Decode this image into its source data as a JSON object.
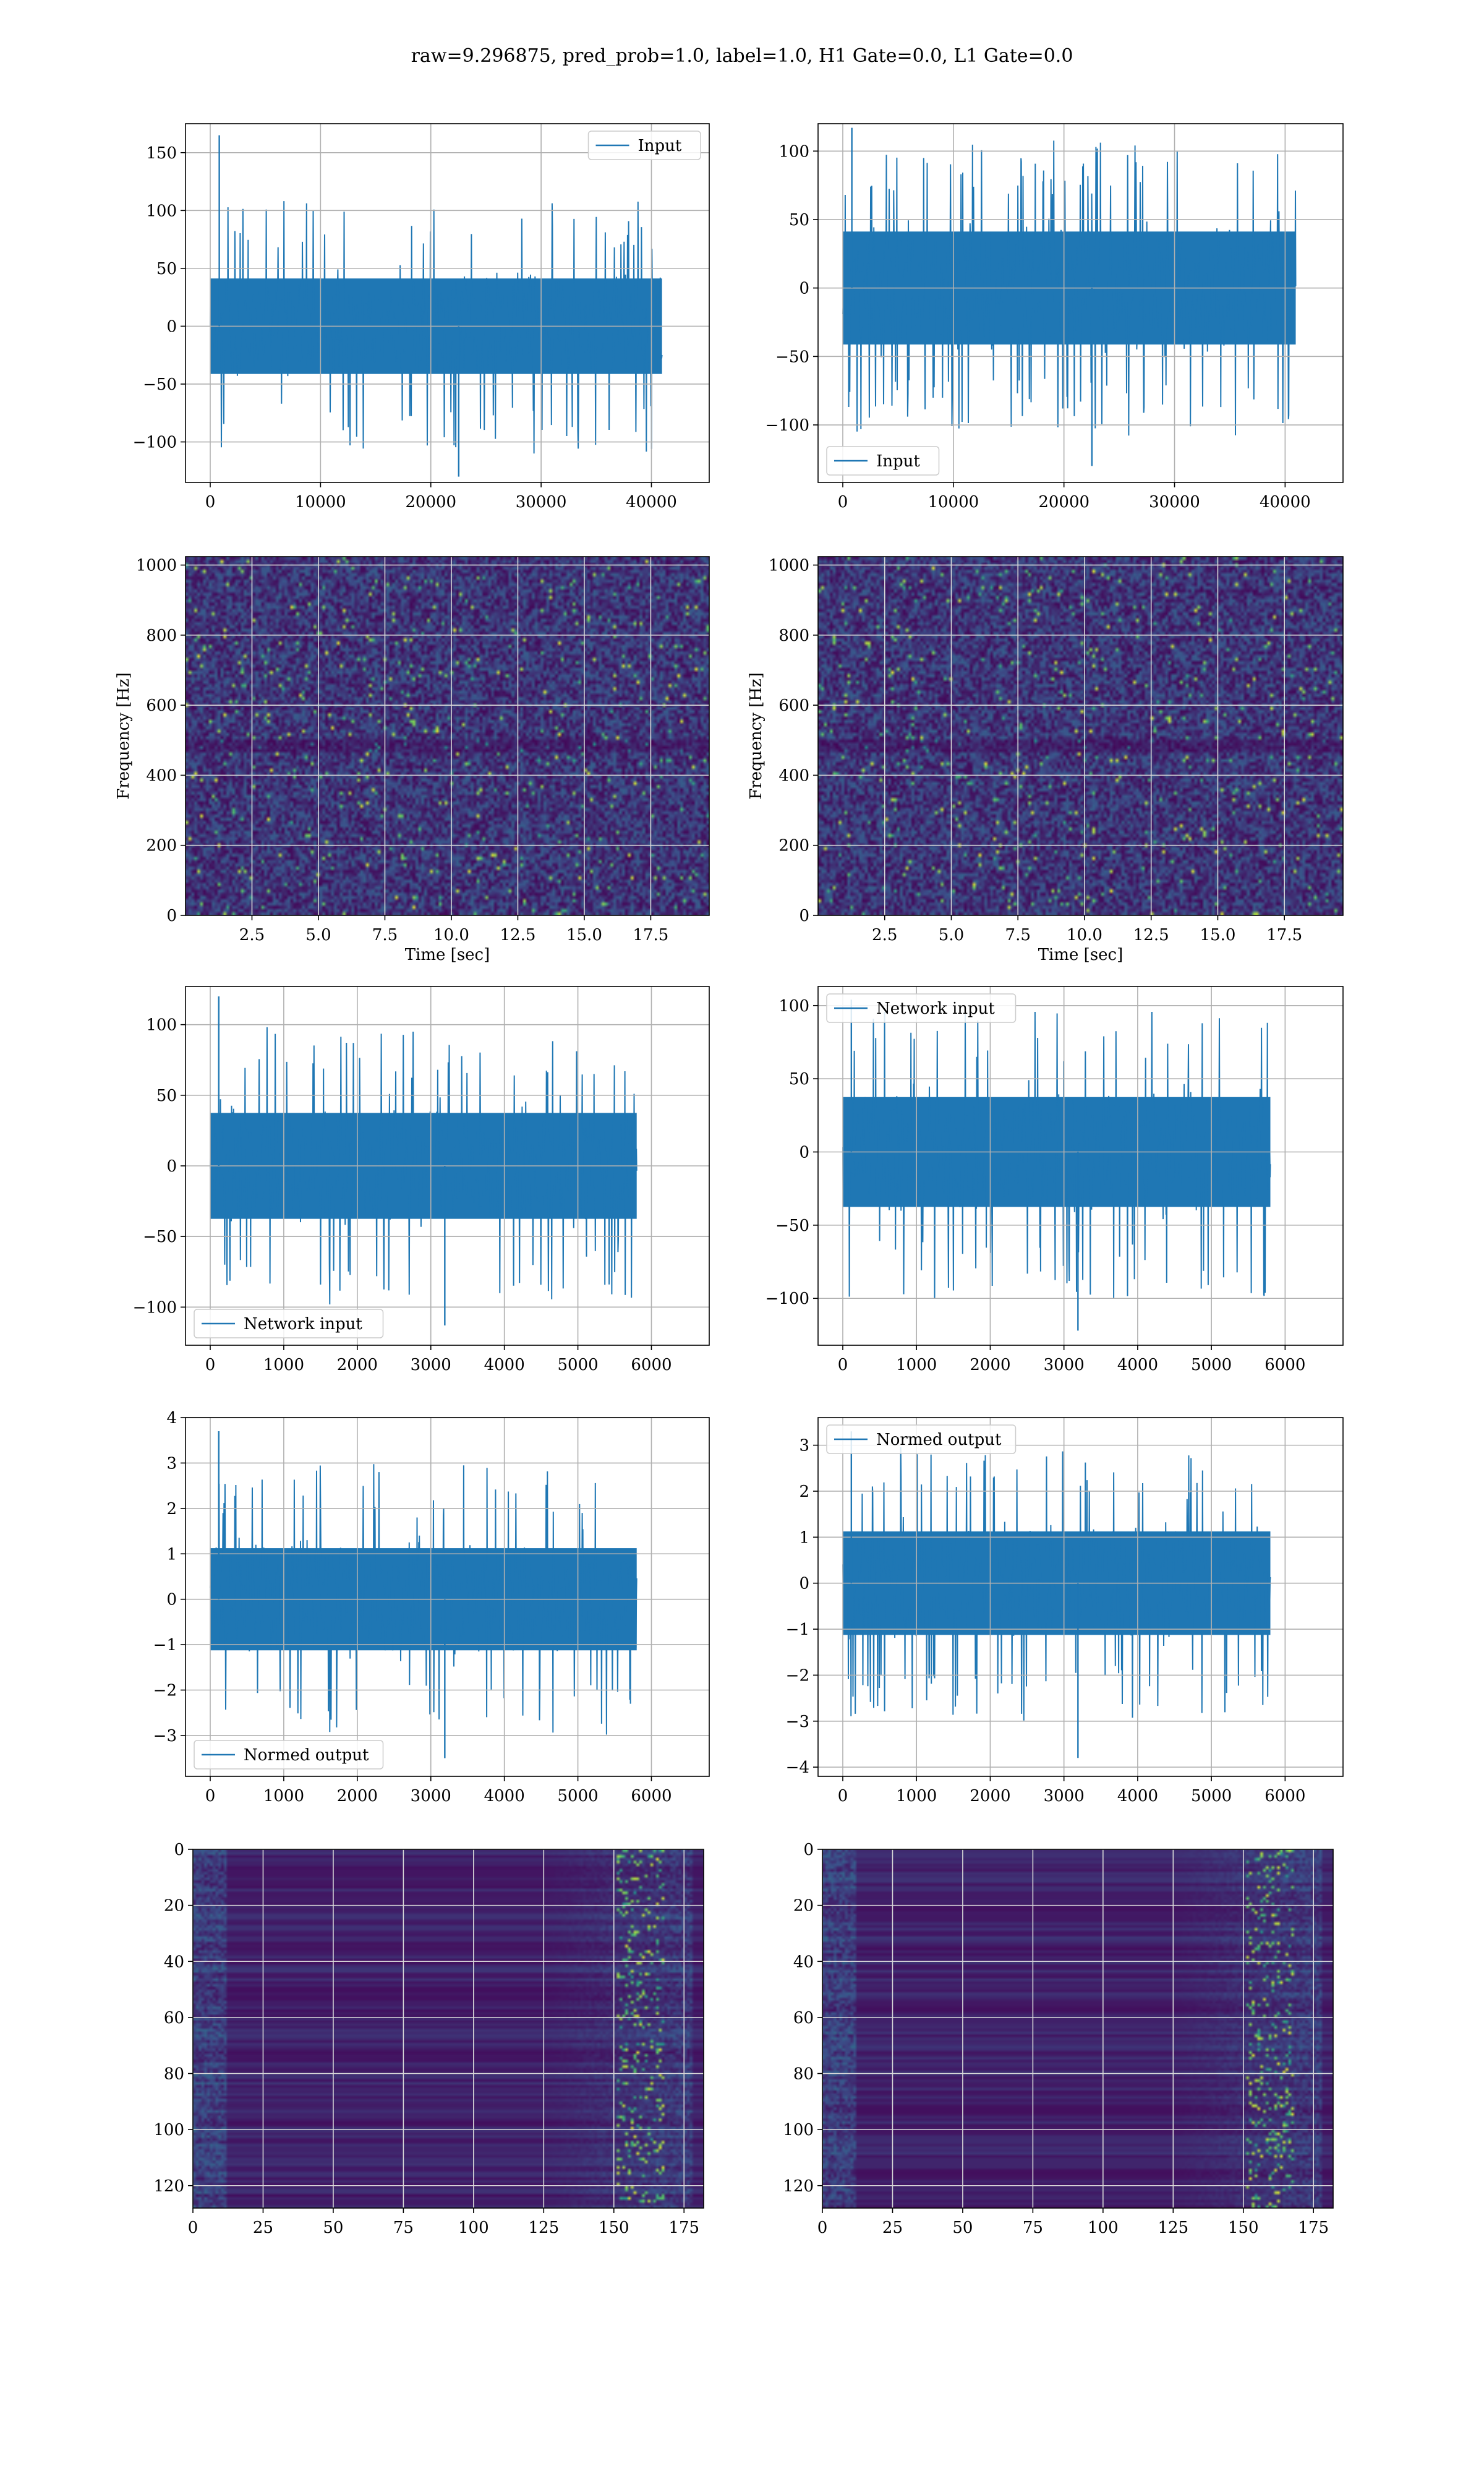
{
  "figure": {
    "suptitle": "raw=9.296875, pred_prob=1.0, label=1.0, H1 Gate=0.0, L1 Gate=0.0"
  },
  "colors": {
    "series": "#1f77b4",
    "grid": "#b0b0b0",
    "viridis_low": "#440154",
    "viridis_mid": "#21918c",
    "viridis_high": "#fde725"
  },
  "chart_data": [
    {
      "id": "h1-input",
      "type": "line",
      "legend_loc": "upper right",
      "series": [
        {
          "name": "Input",
          "color": "#1f77b4"
        }
      ],
      "x_range": [
        0,
        40960
      ],
      "ylim": [
        -135,
        175
      ],
      "xticks": [
        0,
        10000,
        20000,
        30000,
        40000
      ],
      "yticks": [
        -100,
        -50,
        0,
        50,
        100,
        150
      ],
      "amplitude": {
        "typical": 55,
        "peak_max": 165,
        "peak_min": -130
      },
      "grid": true,
      "xlabel": "",
      "ylabel": ""
    },
    {
      "id": "l1-input",
      "type": "line",
      "legend_loc": "lower left",
      "series": [
        {
          "name": "Input",
          "color": "#1f77b4"
        }
      ],
      "x_range": [
        0,
        40960
      ],
      "ylim": [
        -142,
        120
      ],
      "xticks": [
        0,
        10000,
        20000,
        30000,
        40000
      ],
      "yticks": [
        -100,
        -50,
        0,
        50,
        100
      ],
      "amplitude": {
        "typical": 55,
        "peak_max": 117,
        "peak_min": -130
      },
      "grid": true,
      "xlabel": "",
      "ylabel": ""
    },
    {
      "id": "h1-spectrogram",
      "type": "heatmap",
      "x_range": [
        0,
        19.7
      ],
      "ylim": [
        0,
        1024
      ],
      "xticks": [
        2.5,
        5.0,
        7.5,
        10.0,
        12.5,
        15.0,
        17.5
      ],
      "xtick_labels": [
        "2.5",
        "5.0",
        "7.5",
        "10.0",
        "12.5",
        "15.0",
        "17.5"
      ],
      "yticks": [
        0,
        200,
        400,
        600,
        800,
        1000
      ],
      "xlabel": "Time [sec]",
      "ylabel": "Frequency [Hz]",
      "colormap": "viridis",
      "grid": true
    },
    {
      "id": "l1-spectrogram",
      "type": "heatmap",
      "x_range": [
        0,
        19.7
      ],
      "ylim": [
        0,
        1024
      ],
      "xticks": [
        2.5,
        5.0,
        7.5,
        10.0,
        12.5,
        15.0,
        17.5
      ],
      "xtick_labels": [
        "2.5",
        "5.0",
        "7.5",
        "10.0",
        "12.5",
        "15.0",
        "17.5"
      ],
      "yticks": [
        0,
        200,
        400,
        600,
        800,
        1000
      ],
      "xlabel": "Time [sec]",
      "ylabel": "Frequency [Hz]",
      "colormap": "viridis",
      "grid": true
    },
    {
      "id": "h1-network-input",
      "type": "line",
      "legend_loc": "lower left",
      "series": [
        {
          "name": "Network input",
          "color": "#1f77b4"
        }
      ],
      "x_range": [
        0,
        5800
      ],
      "ylim": [
        -127,
        127
      ],
      "xticks": [
        0,
        1000,
        2000,
        3000,
        4000,
        5000,
        6000
      ],
      "yticks": [
        -100,
        -50,
        0,
        50,
        100
      ],
      "amplitude": {
        "typical": 50,
        "peak_max": 120,
        "peak_min": -113
      },
      "grid": true,
      "xlabel": "",
      "ylabel": ""
    },
    {
      "id": "l1-network-input",
      "type": "line",
      "legend_loc": "upper left",
      "series": [
        {
          "name": "Network input",
          "color": "#1f77b4"
        }
      ],
      "x_range": [
        0,
        5800
      ],
      "ylim": [
        -132,
        113
      ],
      "xticks": [
        0,
        1000,
        2000,
        3000,
        4000,
        5000,
        6000
      ],
      "yticks": [
        -100,
        -50,
        0,
        50,
        100
      ],
      "amplitude": {
        "typical": 50,
        "peak_max": 104,
        "peak_min": -122
      },
      "grid": true,
      "xlabel": "",
      "ylabel": ""
    },
    {
      "id": "h1-normed-output",
      "type": "line",
      "legend_loc": "lower left",
      "series": [
        {
          "name": "Normed output",
          "color": "#1f77b4"
        }
      ],
      "x_range": [
        0,
        5800
      ],
      "ylim": [
        -3.9,
        4.0
      ],
      "xticks": [
        0,
        1000,
        2000,
        3000,
        4000,
        5000,
        6000
      ],
      "yticks": [
        -3,
        -2,
        -1,
        0,
        1,
        2,
        3,
        4
      ],
      "amplitude": {
        "typical": 1.5,
        "peak_max": 3.7,
        "peak_min": -3.5
      },
      "grid": true,
      "xlabel": "",
      "ylabel": ""
    },
    {
      "id": "l1-normed-output",
      "type": "line",
      "legend_loc": "upper left",
      "series": [
        {
          "name": "Normed output",
          "color": "#1f77b4"
        }
      ],
      "x_range": [
        0,
        5800
      ],
      "ylim": [
        -4.2,
        3.6
      ],
      "xticks": [
        0,
        1000,
        2000,
        3000,
        4000,
        5000,
        6000
      ],
      "yticks": [
        -4,
        -3,
        -2,
        -1,
        0,
        1,
        2,
        3
      ],
      "amplitude": {
        "typical": 1.5,
        "peak_max": 3.3,
        "peak_min": -3.8
      },
      "grid": true,
      "xlabel": "",
      "ylabel": ""
    },
    {
      "id": "h1-feature-map",
      "type": "heatmap",
      "x_range": [
        0,
        182
      ],
      "ylim": [
        128,
        0
      ],
      "xticks": [
        0,
        25,
        50,
        75,
        100,
        125,
        150,
        175
      ],
      "yticks": [
        0,
        20,
        40,
        60,
        80,
        100,
        120
      ],
      "colormap": "viridis",
      "grid": true,
      "xlabel": "",
      "ylabel": ""
    },
    {
      "id": "l1-feature-map",
      "type": "heatmap",
      "x_range": [
        0,
        182
      ],
      "ylim": [
        128,
        0
      ],
      "xticks": [
        0,
        25,
        50,
        75,
        100,
        125,
        150,
        175
      ],
      "yticks": [
        0,
        20,
        40,
        60,
        80,
        100,
        120
      ],
      "colormap": "viridis",
      "grid": true,
      "xlabel": "",
      "ylabel": ""
    }
  ]
}
